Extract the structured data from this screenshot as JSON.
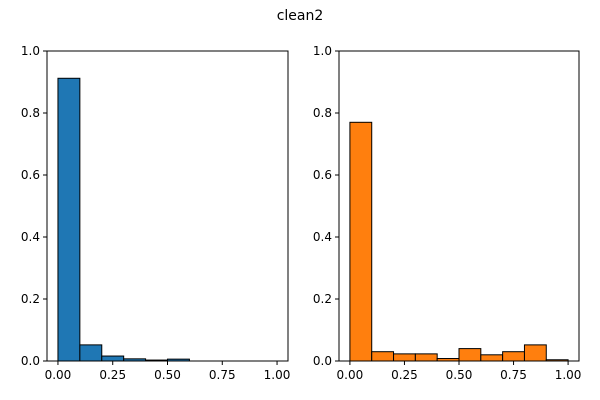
{
  "title": "clean2",
  "chart_data": [
    {
      "type": "bar",
      "subplot": "left",
      "color": "#1f77b4",
      "edge_color": "#000000",
      "bin_edges": [
        0.0,
        0.1,
        0.2,
        0.3,
        0.4,
        0.5,
        0.6,
        0.7,
        0.8,
        0.9,
        1.0
      ],
      "values": [
        0.912,
        0.052,
        0.016,
        0.007,
        0.003,
        0.006,
        0.0,
        0.0,
        0.0,
        0.0
      ],
      "xlim": [
        -0.05,
        1.05
      ],
      "ylim": [
        0,
        1.0
      ],
      "xticks": [
        0.0,
        0.25,
        0.5,
        0.75,
        1.0
      ],
      "xtick_labels": [
        "0.00",
        "0.25",
        "0.50",
        "0.75",
        "1.00"
      ],
      "yticks": [
        0.0,
        0.2,
        0.4,
        0.6,
        0.8,
        1.0
      ],
      "ytick_labels": [
        "0.0",
        "0.2",
        "0.4",
        "0.6",
        "0.8",
        "1.0"
      ],
      "grid": false
    },
    {
      "type": "bar",
      "subplot": "right",
      "color": "#ff7f0e",
      "edge_color": "#000000",
      "bin_edges": [
        0.0,
        0.1,
        0.2,
        0.3,
        0.4,
        0.5,
        0.6,
        0.7,
        0.8,
        0.9,
        1.0
      ],
      "values": [
        0.77,
        0.03,
        0.023,
        0.023,
        0.008,
        0.04,
        0.02,
        0.03,
        0.052,
        0.004
      ],
      "xlim": [
        -0.05,
        1.05
      ],
      "ylim": [
        0,
        1.0
      ],
      "xticks": [
        0.0,
        0.25,
        0.5,
        0.75,
        1.0
      ],
      "xtick_labels": [
        "0.00",
        "0.25",
        "0.50",
        "0.75",
        "1.00"
      ],
      "yticks": [
        0.0,
        0.2,
        0.4,
        0.6,
        0.8,
        1.0
      ],
      "ytick_labels": [
        "0.0",
        "0.2",
        "0.4",
        "0.6",
        "0.8",
        "1.0"
      ],
      "grid": false
    }
  ]
}
